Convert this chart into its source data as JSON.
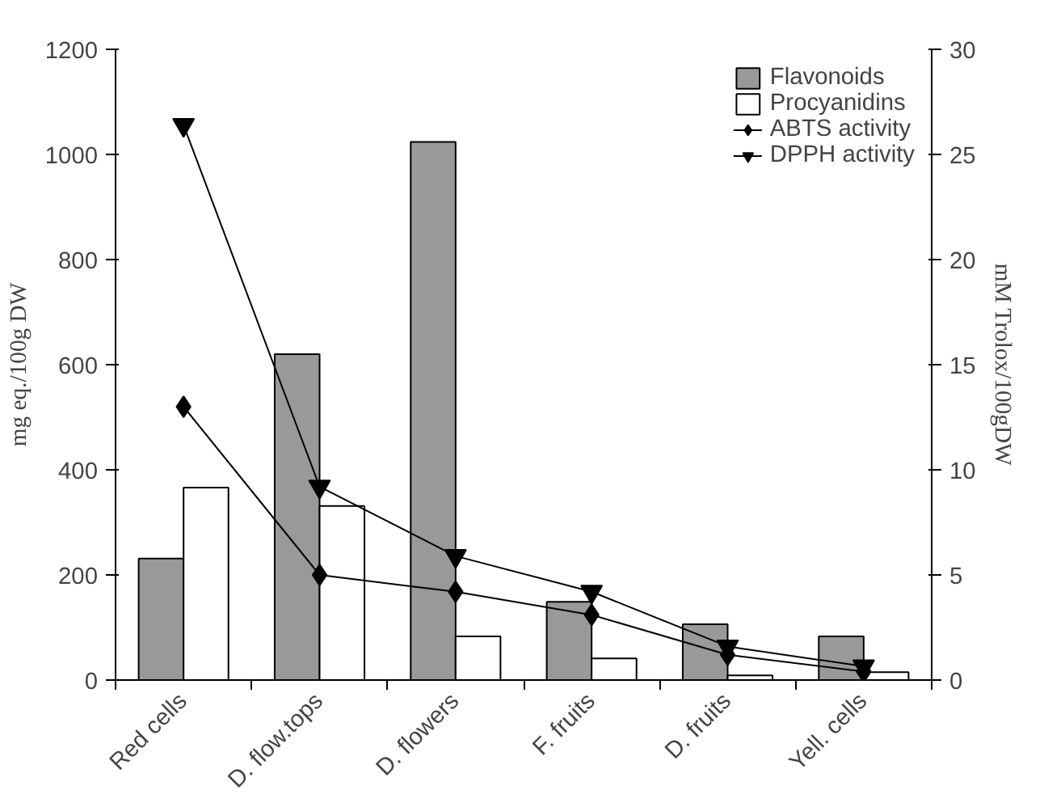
{
  "chart_data": {
    "type": "bar",
    "categories": [
      "Red cells",
      "D. flow.tops",
      "D. flowers",
      "F. fruits",
      "D. fruits",
      "Yell. cells"
    ],
    "ylabel": "mg eq./100g DW",
    "y2label": "mM Trolox/100gDW",
    "ylim": [
      0,
      1200
    ],
    "yticks": [
      0,
      200,
      400,
      600,
      800,
      1000,
      1200
    ],
    "y2lim": [
      0,
      30
    ],
    "y2ticks": [
      0,
      5,
      10,
      15,
      20,
      25,
      30
    ],
    "legend": "top right",
    "grid": false,
    "series": [
      {
        "name": "Flavonoids",
        "color": "#999999",
        "values": [
          231,
          620,
          1024,
          149,
          106,
          83
        ]
      },
      {
        "name": "Procyanidins",
        "color": "#ffffff",
        "values": [
          366,
          331,
          83,
          41,
          9,
          15
        ]
      },
      {
        "name": "ABTS activity",
        "type": "line",
        "axis": "y2",
        "marker": "diamond",
        "color": "#000000",
        "values": [
          13.0,
          5.0,
          4.2,
          3.1,
          1.2,
          0.4
        ]
      },
      {
        "name": "DPPH activity",
        "type": "line",
        "axis": "y2",
        "marker": "triangle",
        "color": "#000000",
        "values": [
          26.4,
          9.2,
          5.9,
          4.2,
          1.6,
          0.65
        ]
      }
    ]
  }
}
